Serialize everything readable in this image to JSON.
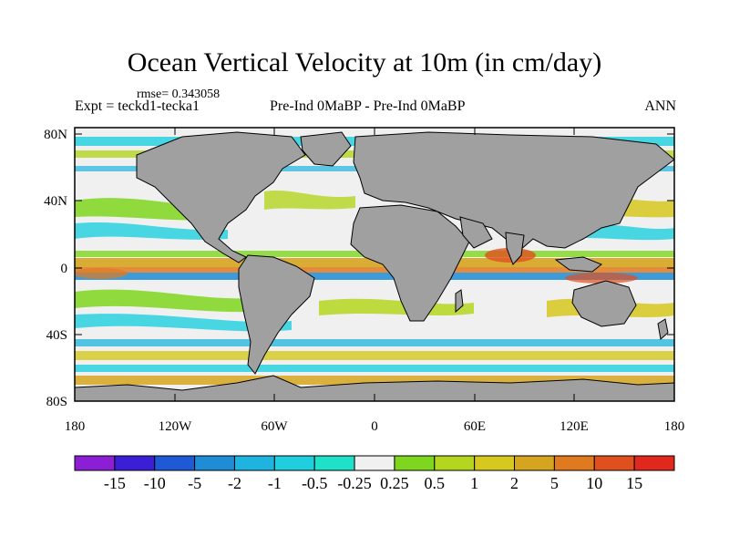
{
  "title": "Ocean Vertical Velocity at 10m (in cm/day)",
  "rmse_label": "rmse= 0.343058",
  "experiment_label": "Expt = teckd1-tecka1",
  "comparison_label": "Pre-Ind 0MaBP - Pre-Ind 0MaBP",
  "season_label": "ANN",
  "lat_ticks": [
    "80N",
    "40N",
    "0",
    "40S",
    "80S"
  ],
  "lon_ticks": [
    "180",
    "120W",
    "60W",
    "0",
    "60E",
    "120E",
    "180"
  ],
  "colorbar": {
    "labels": [
      "-15",
      "-10",
      "-5",
      "-2",
      "-1",
      "-0.5",
      "-0.25",
      "0.25",
      "0.5",
      "1",
      "2",
      "5",
      "10",
      "15"
    ],
    "colors": [
      "#8c1fd6",
      "#3a1fd6",
      "#1f5ad6",
      "#1f8cd6",
      "#1fb4e0",
      "#1fcfe0",
      "#1fe0c8",
      "#f0f0f0",
      "#7fd61f",
      "#b4d61f",
      "#d6c81f",
      "#d6a51f",
      "#e07a1f",
      "#e0501f",
      "#e0281f"
    ]
  },
  "colors": {
    "land": "#a0a0a0",
    "ocean_neutral": "#f0f0f0",
    "frame": "#000000"
  }
}
